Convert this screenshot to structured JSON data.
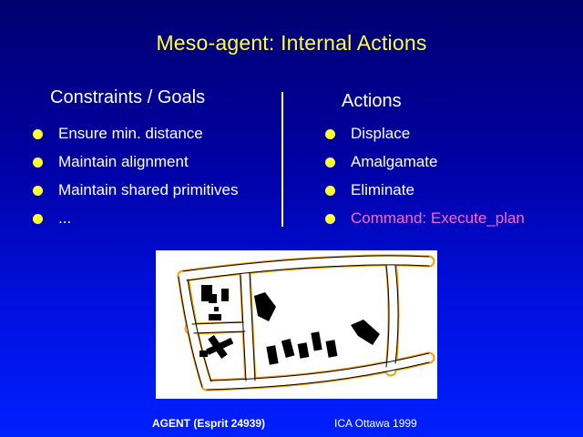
{
  "slide": {
    "title": "Meso-agent:  Internal Actions",
    "left_column": {
      "heading": "Constraints / Goals",
      "items": [
        "Ensure min. distance",
        "Maintain alignment",
        "Maintain shared primitives",
        "..."
      ]
    },
    "right_column": {
      "heading": "Actions",
      "items": [
        "Displace",
        "Amalgamate",
        "Eliminate",
        "Command: Execute_plan"
      ]
    },
    "footer": {
      "left": "AGENT (Esprit 24939)",
      "right": "ICA Ottawa 1999"
    }
  },
  "colors": {
    "title": "#ffff33",
    "bullet": "#ffff33",
    "highlight": "#ff66cc",
    "road_outline": "#f5a000"
  }
}
